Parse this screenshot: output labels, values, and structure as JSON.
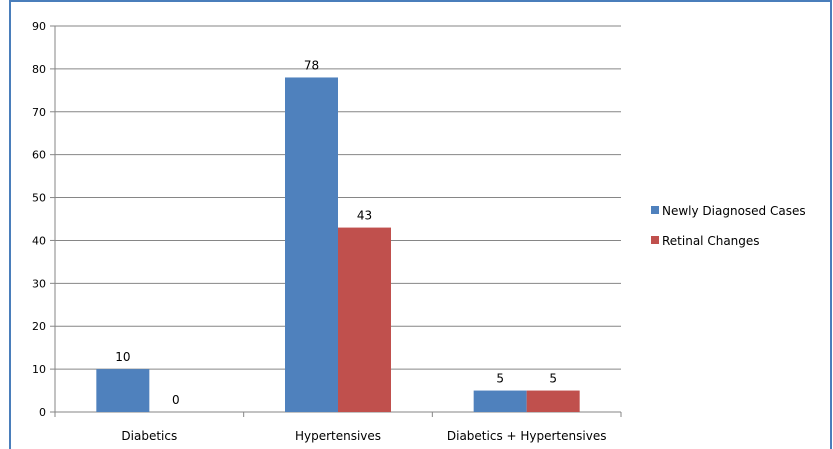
{
  "chart_data": {
    "type": "bar",
    "title": "",
    "xlabel": "",
    "ylabel": "",
    "categories": [
      "Diabetics",
      "Hypertensives",
      "Diabetics + Hypertensives"
    ],
    "series": [
      {
        "name": "Newly Diagnosed Cases",
        "values": [
          10,
          78,
          5
        ],
        "color": "#4f81bd"
      },
      {
        "name": "Retinal Changes",
        "values": [
          0,
          43,
          5
        ],
        "color": "#c0504d"
      }
    ],
    "ylim": [
      0,
      90
    ],
    "yticks": [
      0,
      10,
      20,
      30,
      40,
      50,
      60,
      70,
      80,
      90
    ],
    "grid": true,
    "legend": "right",
    "data_labels": true,
    "frame_color": "#4a7ebb",
    "gridline_color": "#868686"
  }
}
